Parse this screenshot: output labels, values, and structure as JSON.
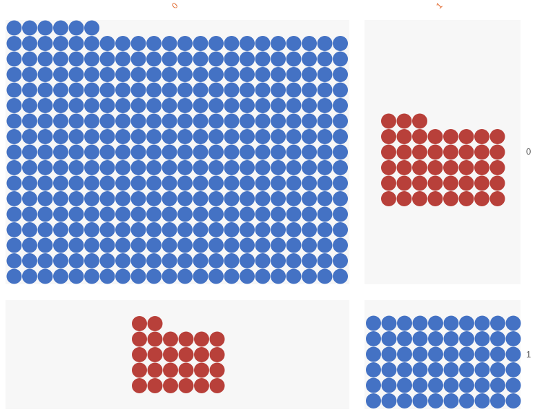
{
  "chart_data": {
    "type": "waffle",
    "column_labels": [
      "0",
      "1"
    ],
    "row_labels": [
      "0",
      "1"
    ],
    "colors": {
      "blue": "#4472c4",
      "red": "#b8403a"
    },
    "cells": [
      {
        "row": "0",
        "col": "0",
        "series": "blue",
        "count": 358,
        "columns": 22
      },
      {
        "row": "0",
        "col": "1",
        "series": "red",
        "count": 43,
        "columns": 8
      },
      {
        "row": "1",
        "col": "0",
        "series": "red",
        "count": 26,
        "columns": 6
      },
      {
        "row": "1",
        "col": "1",
        "series": "blue",
        "count": 60,
        "columns": 10
      }
    ]
  }
}
